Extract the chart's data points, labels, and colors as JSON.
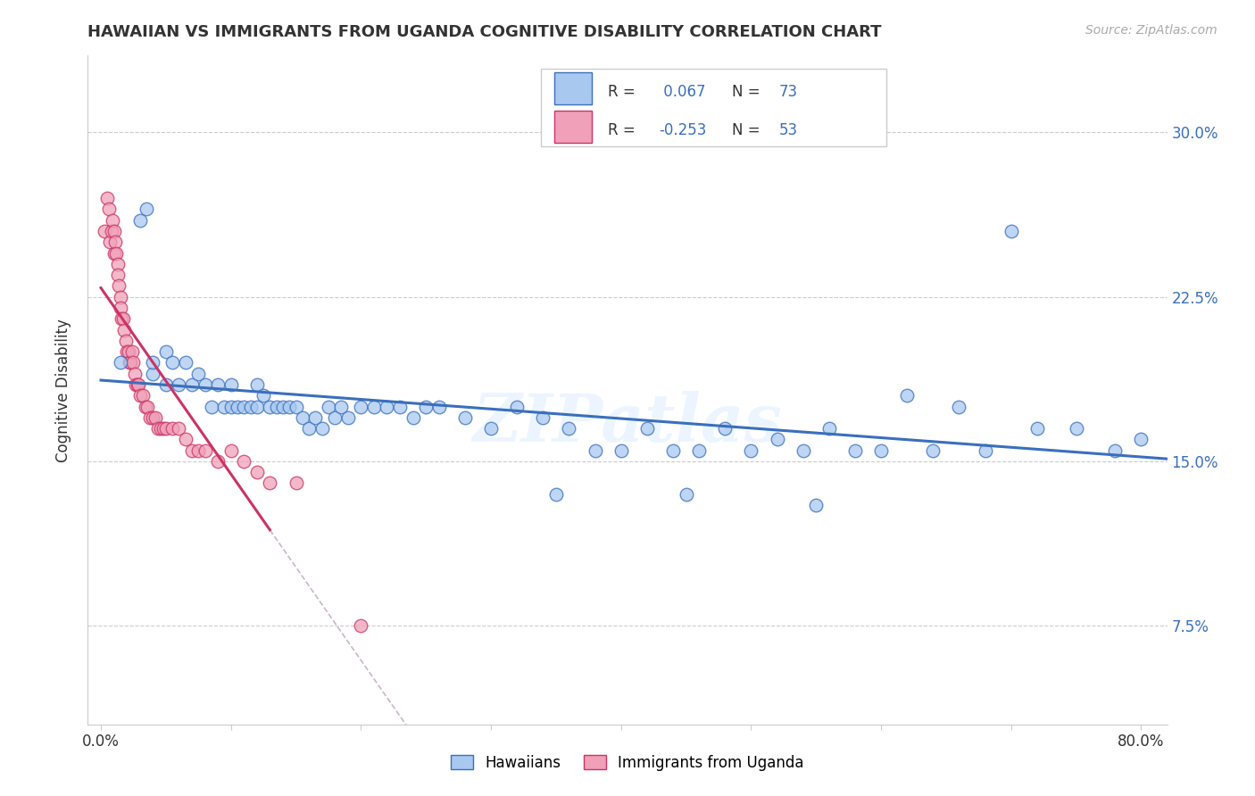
{
  "title": "HAWAIIAN VS IMMIGRANTS FROM UGANDA COGNITIVE DISABILITY CORRELATION CHART",
  "source_text": "Source: ZipAtlas.com",
  "ylabel": "Cognitive Disability",
  "y_ticks": [
    0.075,
    0.15,
    0.225,
    0.3
  ],
  "y_tick_labels": [
    "7.5%",
    "15.0%",
    "22.5%",
    "30.0%"
  ],
  "xlim": [
    -0.01,
    0.82
  ],
  "ylim": [
    0.03,
    0.335
  ],
  "hawaiians_R": "0.067",
  "hawaiians_N": "73",
  "uganda_R": "-0.253",
  "uganda_N": "53",
  "legend_labels": [
    "Hawaiians",
    "Immigrants from Uganda"
  ],
  "hawaii_color": "#a8c8f0",
  "uganda_color": "#f0a0b8",
  "hawaii_line_color": "#3a6fbd",
  "uganda_line_color": "#cc3366",
  "watermark": "ZIPatlas",
  "hawaiians_x": [
    0.015,
    0.03,
    0.035,
    0.04,
    0.04,
    0.05,
    0.05,
    0.055,
    0.06,
    0.065,
    0.07,
    0.075,
    0.08,
    0.085,
    0.09,
    0.095,
    0.1,
    0.1,
    0.105,
    0.11,
    0.115,
    0.12,
    0.12,
    0.125,
    0.13,
    0.135,
    0.14,
    0.145,
    0.15,
    0.155,
    0.16,
    0.165,
    0.17,
    0.175,
    0.18,
    0.185,
    0.19,
    0.2,
    0.21,
    0.22,
    0.23,
    0.24,
    0.25,
    0.26,
    0.28,
    0.3,
    0.32,
    0.34,
    0.36,
    0.38,
    0.4,
    0.42,
    0.44,
    0.46,
    0.48,
    0.5,
    0.52,
    0.54,
    0.56,
    0.58,
    0.6,
    0.62,
    0.64,
    0.66,
    0.68,
    0.7,
    0.72,
    0.75,
    0.78,
    0.8,
    0.35,
    0.45,
    0.55
  ],
  "hawaiians_y": [
    0.195,
    0.26,
    0.265,
    0.19,
    0.195,
    0.185,
    0.2,
    0.195,
    0.185,
    0.195,
    0.185,
    0.19,
    0.185,
    0.175,
    0.185,
    0.175,
    0.175,
    0.185,
    0.175,
    0.175,
    0.175,
    0.175,
    0.185,
    0.18,
    0.175,
    0.175,
    0.175,
    0.175,
    0.175,
    0.17,
    0.165,
    0.17,
    0.165,
    0.175,
    0.17,
    0.175,
    0.17,
    0.175,
    0.175,
    0.175,
    0.175,
    0.17,
    0.175,
    0.175,
    0.17,
    0.165,
    0.175,
    0.17,
    0.165,
    0.155,
    0.155,
    0.165,
    0.155,
    0.155,
    0.165,
    0.155,
    0.16,
    0.155,
    0.165,
    0.155,
    0.155,
    0.18,
    0.155,
    0.175,
    0.155,
    0.255,
    0.165,
    0.165,
    0.155,
    0.16,
    0.135,
    0.135,
    0.13
  ],
  "uganda_x": [
    0.003,
    0.005,
    0.006,
    0.007,
    0.008,
    0.009,
    0.01,
    0.01,
    0.011,
    0.012,
    0.013,
    0.013,
    0.014,
    0.015,
    0.015,
    0.016,
    0.017,
    0.018,
    0.019,
    0.02,
    0.021,
    0.022,
    0.023,
    0.024,
    0.025,
    0.026,
    0.027,
    0.028,
    0.029,
    0.03,
    0.032,
    0.034,
    0.036,
    0.038,
    0.04,
    0.042,
    0.044,
    0.046,
    0.048,
    0.05,
    0.055,
    0.06,
    0.065,
    0.07,
    0.075,
    0.08,
    0.09,
    0.1,
    0.11,
    0.12,
    0.13,
    0.15,
    0.2
  ],
  "uganda_y": [
    0.255,
    0.27,
    0.265,
    0.25,
    0.255,
    0.26,
    0.245,
    0.255,
    0.25,
    0.245,
    0.24,
    0.235,
    0.23,
    0.225,
    0.22,
    0.215,
    0.215,
    0.21,
    0.205,
    0.2,
    0.2,
    0.195,
    0.195,
    0.2,
    0.195,
    0.19,
    0.185,
    0.185,
    0.185,
    0.18,
    0.18,
    0.175,
    0.175,
    0.17,
    0.17,
    0.17,
    0.165,
    0.165,
    0.165,
    0.165,
    0.165,
    0.165,
    0.16,
    0.155,
    0.155,
    0.155,
    0.15,
    0.155,
    0.15,
    0.145,
    0.14,
    0.14,
    0.075
  ]
}
